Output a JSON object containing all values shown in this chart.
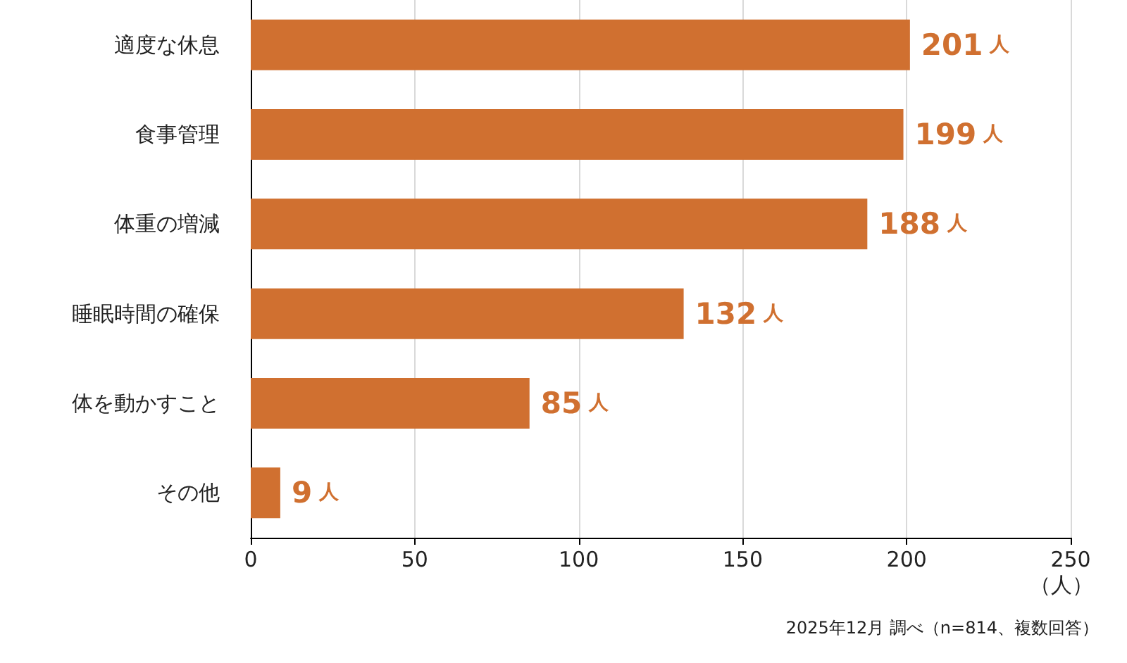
{
  "chart_data": {
    "type": "bar",
    "orientation": "horizontal",
    "categories": [
      "適度な休息",
      "食事管理",
      "体重の増減",
      "睡眠時間の確保",
      "体を動かすこと",
      "その他"
    ],
    "values": [
      201,
      199,
      188,
      132,
      85,
      9
    ],
    "value_labels": [
      "201人",
      "199人",
      "188人",
      "132人",
      "85人",
      "9人"
    ],
    "color": "#d07030",
    "xlim": [
      0,
      250
    ],
    "xticks": [
      0,
      50,
      100,
      150,
      200,
      250
    ],
    "xlabel": "（人）",
    "grid": "x",
    "annotations": [
      "2025年12月 調べ（n=814、複数回答）"
    ]
  }
}
